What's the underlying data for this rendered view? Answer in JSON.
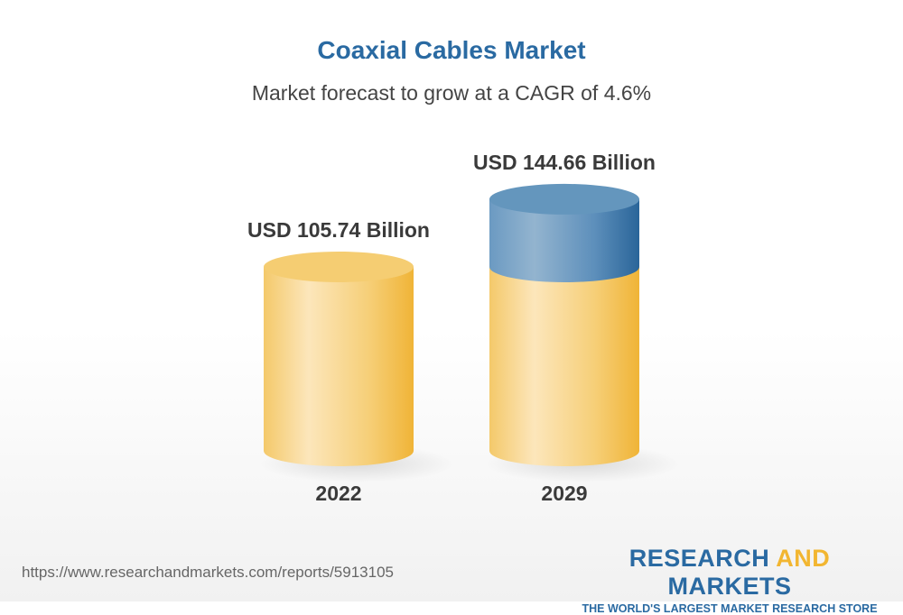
{
  "chart_data": {
    "type": "bar",
    "style": "3d-cylinder",
    "title": "Coaxial Cables Market",
    "subtitle": "Market forecast to grow at a CAGR of 4.6%",
    "categories": [
      "2022",
      "2029"
    ],
    "values": [
      105.74,
      144.66
    ],
    "data_labels": [
      "USD 105.74 Billion",
      "USD 144.66 Billion"
    ],
    "unit": "USD Billion",
    "colors": {
      "base": "#f2c45a",
      "growth": "#2a6aa2"
    }
  },
  "footer": {
    "url": "https://www.researchandmarkets.com/reports/5913105",
    "logo_part1": "RESEARCH ",
    "logo_part2": "AND",
    "logo_part3": " MARKETS",
    "logo_tagline": "THE WORLD'S LARGEST MARKET RESEARCH STORE"
  }
}
